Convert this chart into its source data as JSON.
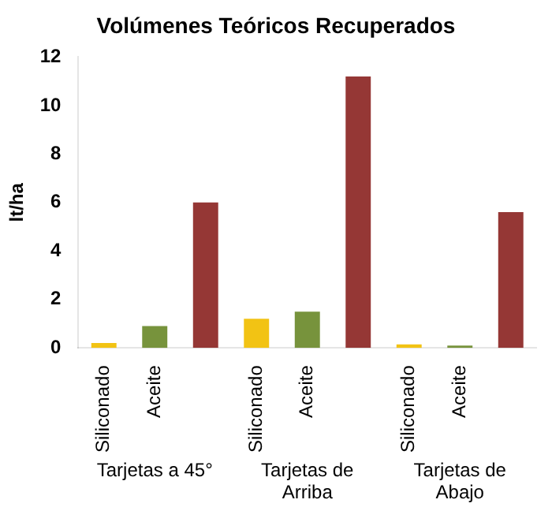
{
  "chart_data": {
    "type": "bar",
    "title": "Volúmenes Teóricos Recuperados",
    "ylabel": "lt/ha",
    "categories": [
      "Siliconado",
      "Aceite",
      null,
      "Siliconado",
      "Aceite",
      null,
      "Siliconado",
      "Aceite",
      null
    ],
    "values": [
      0.2,
      0.9,
      6.0,
      1.2,
      1.5,
      11.2,
      0.15,
      0.1,
      5.6
    ],
    "colors": [
      "#f2c314",
      "#77933c",
      "#953735",
      "#f2c314",
      "#77933c",
      "#953735",
      "#f2c314",
      "#77933c",
      "#953735"
    ],
    "ylim": [
      0,
      12
    ],
    "yticks": [
      0,
      2,
      4,
      6,
      8,
      10,
      12
    ],
    "grid": false,
    "legend": false,
    "annotations": [
      "Tarjetas a 45°",
      "Tarjetas de Arriba",
      "Tarjetas de Abajo"
    ]
  }
}
